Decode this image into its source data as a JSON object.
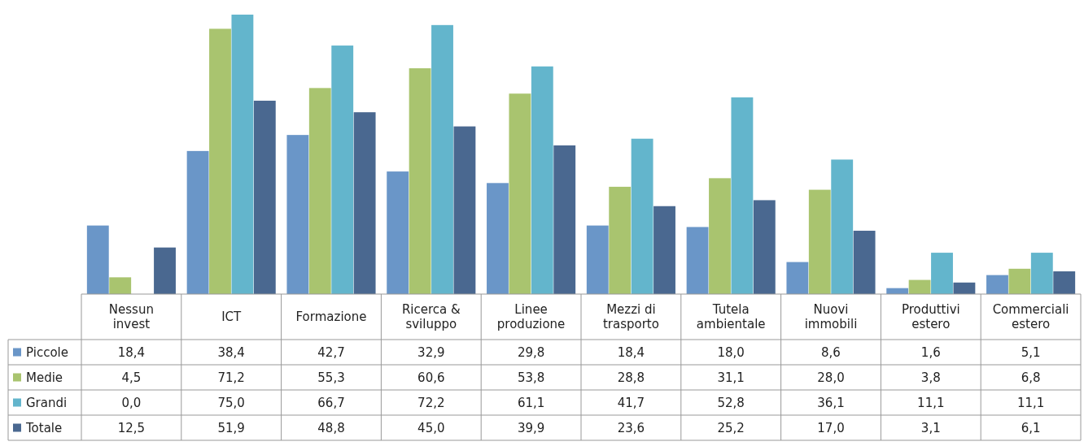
{
  "chart_data": {
    "type": "bar",
    "categories": [
      "Nessun invest",
      "ICT",
      "Formazione",
      "Ricerca & sviluppo",
      "Linee produzione",
      "Mezzi di trasporto",
      "Tutela ambientale",
      "Nuovi immobili",
      "Produttivi estero",
      "Commerciali estero"
    ],
    "series": [
      {
        "name": "Piccole",
        "color": "#6a96c8",
        "values": [
          18.4,
          38.4,
          42.7,
          32.9,
          29.8,
          18.4,
          18.0,
          8.6,
          1.6,
          5.1
        ],
        "value_labels": [
          "18,4",
          "38,4",
          "42,7",
          "32,9",
          "29,8",
          "18,4",
          "18,0",
          "8,6",
          "1,6",
          "5,1"
        ]
      },
      {
        "name": "Medie",
        "color": "#a9c46f",
        "values": [
          4.5,
          71.2,
          55.3,
          60.6,
          53.8,
          28.8,
          31.1,
          28.0,
          3.8,
          6.8
        ],
        "value_labels": [
          "4,5",
          "71,2",
          "55,3",
          "60,6",
          "53,8",
          "28,8",
          "31,1",
          "28,0",
          "3,8",
          "6,8"
        ]
      },
      {
        "name": "Grandi",
        "color": "#63b5cc",
        "values": [
          0.0,
          75.0,
          66.7,
          72.2,
          61.1,
          41.7,
          52.8,
          36.1,
          11.1,
          11.1
        ],
        "value_labels": [
          "0,0",
          "75,0",
          "66,7",
          "72,2",
          "61,1",
          "41,7",
          "52,8",
          "36,1",
          "11,1",
          "11,1"
        ]
      },
      {
        "name": "Totale",
        "color": "#4a6890",
        "values": [
          12.5,
          51.9,
          48.8,
          45.0,
          39.9,
          23.6,
          25.2,
          17.0,
          3.1,
          6.1
        ],
        "value_labels": [
          "12,5",
          "51,9",
          "48,8",
          "45,0",
          "39,9",
          "23,6",
          "25,2",
          "17,0",
          "3,1",
          "6,1"
        ]
      }
    ],
    "legend": "left"
  }
}
